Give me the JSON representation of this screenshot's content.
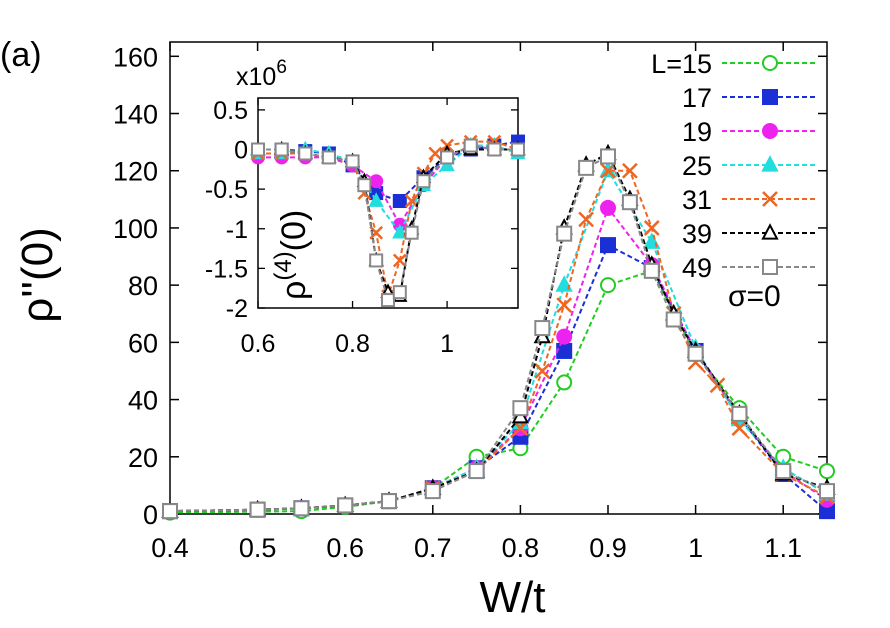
{
  "panel_label": "(a)",
  "colors": {
    "L=15": "#22cc22",
    "17": "#1a2fd6",
    "19": "#ee22ee",
    "25": "#22dddd",
    "31": "#ee6622",
    "39": "#000000",
    "49": "#888888"
  },
  "chart_data": [
    {
      "type": "line",
      "xlabel": "W/t",
      "ylabel": "ρ''(0)",
      "xlim": [
        0.4,
        1.15
      ],
      "ylim": [
        0,
        165
      ],
      "xticks": [
        "0.4",
        "0.5",
        "0.6",
        "0.7",
        "0.8",
        "0.9",
        "1",
        "1.1"
      ],
      "yticks": [
        "0",
        "20",
        "40",
        "60",
        "80",
        "100",
        "120",
        "140",
        "160"
      ],
      "legend_note": "σ=0",
      "legend_position": "right",
      "series": [
        {
          "name": "L=15",
          "marker": "circle-open",
          "x": [
            0.4,
            0.55,
            0.6,
            0.65,
            0.7,
            0.75,
            0.8,
            0.85,
            0.9,
            0.95,
            1.0,
            1.05,
            1.1,
            1.15
          ],
          "y": [
            0.5,
            1,
            2.5,
            4.5,
            9,
            20,
            23,
            46,
            80,
            85,
            56,
            37,
            20,
            15
          ]
        },
        {
          "name": "17",
          "marker": "square-filled",
          "x": [
            0.4,
            0.5,
            0.55,
            0.6,
            0.65,
            0.7,
            0.75,
            0.8,
            0.85,
            0.9,
            0.95,
            1.0,
            1.05,
            1.1,
            1.15
          ],
          "y": [
            1,
            1.5,
            2,
            3,
            4.5,
            9,
            16,
            27,
            57,
            94,
            86,
            57,
            34,
            14,
            1
          ]
        },
        {
          "name": "19",
          "marker": "circle-filled",
          "x": [
            0.4,
            0.5,
            0.55,
            0.6,
            0.65,
            0.7,
            0.75,
            0.8,
            0.85,
            0.9,
            0.95,
            1.0,
            1.05,
            1.1,
            1.15
          ],
          "y": [
            1,
            1.5,
            2,
            3,
            4.5,
            9,
            16,
            30,
            62,
            107,
            87,
            57,
            34,
            15,
            5
          ]
        },
        {
          "name": "25",
          "marker": "triangle-filled",
          "x": [
            0.4,
            0.5,
            0.55,
            0.6,
            0.65,
            0.7,
            0.75,
            0.8,
            0.85,
            0.9,
            0.95,
            1.0,
            1.05,
            1.1,
            1.15
          ],
          "y": [
            1,
            1.5,
            2,
            3,
            4.5,
            9,
            16,
            32,
            80,
            120,
            95,
            58,
            33,
            16,
            7
          ]
        },
        {
          "name": "31",
          "marker": "x",
          "x": [
            0.4,
            0.5,
            0.55,
            0.6,
            0.65,
            0.7,
            0.75,
            0.8,
            0.825,
            0.85,
            0.875,
            0.9,
            0.925,
            0.95,
            0.975,
            1.0,
            1.025,
            1.05,
            1.1,
            1.15
          ],
          "y": [
            1,
            1.5,
            2,
            3,
            4.5,
            9,
            15,
            30,
            50,
            73,
            103,
            120,
            120,
            100,
            70,
            53,
            45,
            30,
            14,
            6
          ]
        },
        {
          "name": "39",
          "marker": "triangle-open",
          "x": [
            0.4,
            0.5,
            0.55,
            0.6,
            0.65,
            0.7,
            0.75,
            0.8,
            0.825,
            0.85,
            0.875,
            0.9,
            0.925,
            0.95,
            0.975,
            1.0,
            1.05,
            1.1,
            1.15
          ],
          "y": [
            1,
            1.5,
            2,
            3,
            4.5,
            9,
            15,
            34,
            62,
            100,
            122,
            126,
            110,
            87,
            70,
            57,
            35,
            14,
            9
          ]
        },
        {
          "name": "49",
          "marker": "square-open",
          "x": [
            0.4,
            0.5,
            0.55,
            0.6,
            0.65,
            0.7,
            0.75,
            0.8,
            0.825,
            0.85,
            0.875,
            0.9,
            0.925,
            0.95,
            0.975,
            1.0,
            1.05,
            1.1,
            1.15
          ],
          "y": [
            1,
            1.5,
            2,
            3,
            4.5,
            8,
            15,
            37,
            65,
            98,
            121,
            125,
            109,
            85,
            68,
            56,
            35,
            15,
            8
          ]
        }
      ]
    },
    {
      "type": "line",
      "role": "inset",
      "ylabel": "ρ(4)(0)",
      "multiplier": "x10",
      "multiplier_exponent": "6",
      "xlim": [
        0.6,
        1.15
      ],
      "ylim": [
        -2,
        0.65
      ],
      "xticks": [
        "0.6",
        "0.8",
        "1"
      ],
      "yticks": [
        "0.5",
        "0",
        "-0.5",
        "-1",
        "-1.5",
        "-2"
      ],
      "series": [
        {
          "name": "17",
          "marker": "square-filled",
          "x": [
            0.6,
            0.65,
            0.7,
            0.75,
            0.8,
            0.85,
            0.9,
            0.95,
            1.0,
            1.05,
            1.1,
            1.15
          ],
          "y": [
            0,
            0,
            -0.02,
            -0.05,
            -0.2,
            -0.55,
            -0.65,
            -0.35,
            -0.1,
            0,
            0.05,
            0.1
          ]
        },
        {
          "name": "19",
          "marker": "circle-filled",
          "x": [
            0.6,
            0.65,
            0.7,
            0.75,
            0.8,
            0.85,
            0.9,
            0.95,
            1.0,
            1.05,
            1.1,
            1.15
          ],
          "y": [
            -0.1,
            -0.1,
            -0.1,
            -0.1,
            -0.2,
            -0.4,
            -0.95,
            -0.45,
            -0.1,
            0.05,
            0,
            0
          ]
        },
        {
          "name": "25",
          "marker": "triangle-filled",
          "x": [
            0.6,
            0.65,
            0.7,
            0.75,
            0.8,
            0.85,
            0.9,
            0.95,
            1.0,
            1.05,
            1.1,
            1.15
          ],
          "y": [
            -0.05,
            -0.05,
            0,
            -0.05,
            -0.15,
            -0.65,
            -1.05,
            -0.45,
            -0.2,
            0.05,
            0.05,
            -0.05
          ]
        },
        {
          "name": "31",
          "marker": "x",
          "x": [
            0.6,
            0.65,
            0.7,
            0.75,
            0.8,
            0.825,
            0.85,
            0.875,
            0.9,
            0.925,
            0.95,
            0.975,
            1.0,
            1.05,
            1.1,
            1.15
          ],
          "y": [
            -0.05,
            -0.05,
            -0.05,
            -0.1,
            -0.15,
            -0.55,
            -1.05,
            -1.85,
            -1.4,
            -0.65,
            -0.3,
            -0.05,
            0.05,
            0.1,
            0.1,
            0
          ]
        },
        {
          "name": "39",
          "marker": "triangle-open",
          "x": [
            0.6,
            0.65,
            0.7,
            0.75,
            0.8,
            0.825,
            0.85,
            0.875,
            0.9,
            0.925,
            0.95,
            1.0,
            1.05,
            1.1,
            1.15
          ],
          "y": [
            0,
            0,
            -0.05,
            -0.1,
            -0.15,
            -0.4,
            -1.4,
            -1.8,
            -1.85,
            -1.0,
            -0.35,
            -0.05,
            0,
            0,
            0
          ]
        },
        {
          "name": "49",
          "marker": "square-open",
          "x": [
            0.6,
            0.65,
            0.7,
            0.75,
            0.8,
            0.825,
            0.85,
            0.875,
            0.9,
            0.925,
            0.95,
            1.0,
            1.05,
            1.1,
            1.15
          ],
          "y": [
            0,
            0,
            -0.05,
            -0.1,
            -0.15,
            -0.45,
            -1.4,
            -1.9,
            -1.8,
            -1.05,
            -0.4,
            -0.1,
            0.05,
            0,
            0
          ]
        }
      ]
    }
  ]
}
